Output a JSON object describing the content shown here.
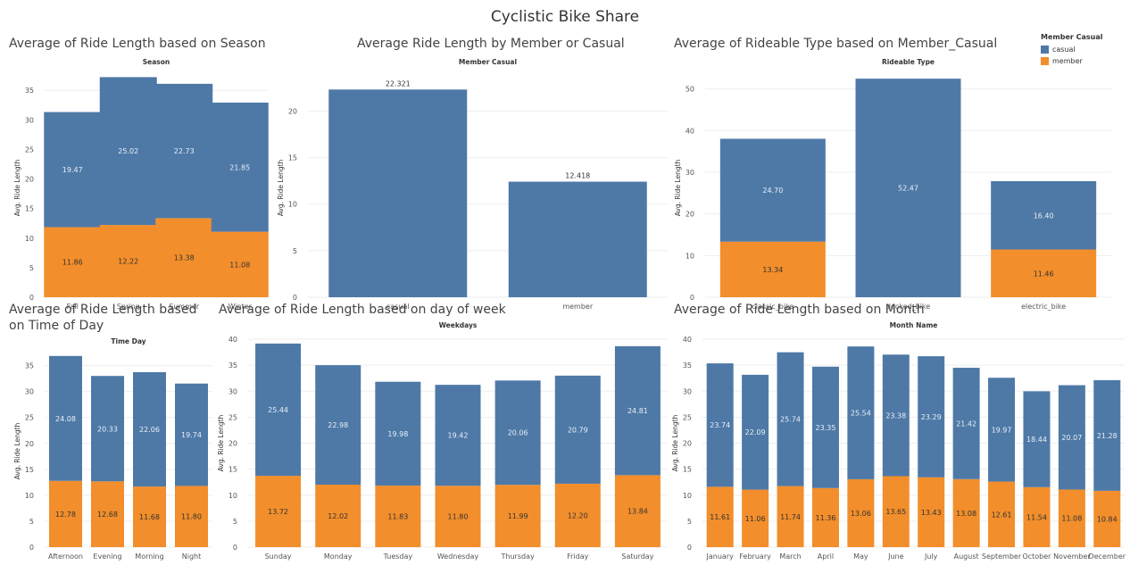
{
  "dashboard": {
    "title": "Cyclistic Bike Share"
  },
  "colors": {
    "casual": "#4e79a7",
    "member": "#f28e2b",
    "grid": "#eeeeee",
    "axis": "#555555"
  },
  "legend": {
    "title": "Member Casual",
    "items": [
      {
        "label": "casual",
        "color": "#4e79a7"
      },
      {
        "label": "member",
        "color": "#f28e2b"
      }
    ]
  },
  "chart_data": [
    {
      "id": "season",
      "type": "bar",
      "stacked": true,
      "title": "Average of Ride Length based on Season",
      "header": "Season",
      "ylabel": "Avg. Ride Length",
      "ylim": [
        0,
        37
      ],
      "yticks": [
        0,
        5,
        10,
        15,
        20,
        25,
        30,
        35
      ],
      "categories": [
        "Fall",
        "Spring",
        "Summer",
        "Winter"
      ],
      "series": [
        {
          "name": "member",
          "values": [
            11.86,
            12.22,
            13.38,
            11.08
          ]
        },
        {
          "name": "casual",
          "values": [
            19.47,
            25.02,
            22.73,
            21.85
          ]
        }
      ],
      "labels": {
        "member": [
          "11.86",
          "12.22",
          "13.38",
          "11.08"
        ],
        "casual": [
          "19.47",
          "25.02",
          "22.73",
          "21.85"
        ]
      }
    },
    {
      "id": "member_casual",
      "type": "bar",
      "stacked": false,
      "title": "Average Ride Length by Member or Casual",
      "header": "Member Casual",
      "ylabel": "Avg. Ride Length",
      "ylim": [
        0,
        23.5
      ],
      "yticks": [
        0,
        5,
        10,
        15,
        20
      ],
      "categories": [
        "casual",
        "member"
      ],
      "series": [
        {
          "name": "Avg. Ride Length",
          "values": [
            22.321,
            12.418
          ]
        }
      ],
      "labels": {
        "total": [
          "22.321",
          "12.418"
        ]
      }
    },
    {
      "id": "rideable_type",
      "type": "bar",
      "stacked": true,
      "title": "Average of Rideable Type based on Member_Casual",
      "header": "Rideable Type",
      "ylabel": "Avg. Ride Length",
      "ylim": [
        0,
        52.5
      ],
      "yticks": [
        0,
        10,
        20,
        30,
        40,
        50
      ],
      "categories": [
        "classic_bike",
        "docked_bike",
        "electric_bike"
      ],
      "series": [
        {
          "name": "member",
          "values": [
            13.34,
            0,
            11.46
          ]
        },
        {
          "name": "casual",
          "values": [
            24.7,
            52.47,
            16.4
          ]
        }
      ],
      "labels": {
        "member": [
          "13.34",
          "",
          "11.46"
        ],
        "casual": [
          "24.70",
          "52.47",
          "16.40"
        ]
      }
    },
    {
      "id": "time_of_day",
      "type": "bar",
      "stacked": true,
      "title": "Average of Ride Length based on Time of Day",
      "header": "Time Day",
      "ylabel": "Avg. Ride Length",
      "ylim": [
        0,
        37
      ],
      "yticks": [
        0,
        5,
        10,
        15,
        20,
        25,
        30,
        35
      ],
      "categories": [
        "Afternoon",
        "Evening",
        "Morning",
        "Night"
      ],
      "series": [
        {
          "name": "member",
          "values": [
            12.78,
            12.68,
            11.68,
            11.8
          ]
        },
        {
          "name": "casual",
          "values": [
            24.08,
            20.33,
            22.06,
            19.74
          ]
        }
      ],
      "labels": {
        "member": [
          "12.78",
          "12.68",
          "11.68",
          "11.80"
        ],
        "casual": [
          "24.08",
          "20.33",
          "22.06",
          "19.74"
        ]
      }
    },
    {
      "id": "weekday",
      "type": "bar",
      "stacked": true,
      "title": "Average of Ride Length based on day of week",
      "header": "Weekdays",
      "ylabel": "Avg. Ride Length",
      "ylim": [
        0,
        40
      ],
      "yticks": [
        0,
        5,
        10,
        15,
        20,
        25,
        30,
        35,
        40
      ],
      "categories": [
        "Sunday",
        "Monday",
        "Tuesday",
        "Wednesday",
        "Thursday",
        "Friday",
        "Saturday"
      ],
      "series": [
        {
          "name": "member",
          "values": [
            13.72,
            12.02,
            11.83,
            11.8,
            11.99,
            12.2,
            13.84
          ]
        },
        {
          "name": "casual",
          "values": [
            25.44,
            22.98,
            19.98,
            19.42,
            20.06,
            20.79,
            24.81
          ]
        }
      ],
      "labels": {
        "member": [
          "13.72",
          "12.02",
          "11.83",
          "11.80",
          "11.99",
          "12.20",
          "13.84"
        ],
        "casual": [
          "25.44",
          "22.98",
          "19.98",
          "19.42",
          "20.06",
          "20.79",
          "24.81"
        ]
      }
    },
    {
      "id": "month",
      "type": "bar",
      "stacked": true,
      "title": "Average of Ride Length based on Month",
      "header": "Month Name",
      "ylabel": "Avg. Ride Length",
      "ylim": [
        0,
        40
      ],
      "yticks": [
        0,
        5,
        10,
        15,
        20,
        25,
        30,
        35,
        40
      ],
      "categories": [
        "January",
        "February",
        "March",
        "April",
        "May",
        "June",
        "July",
        "August",
        "September",
        "October",
        "November",
        "December"
      ],
      "series": [
        {
          "name": "member",
          "values": [
            11.61,
            11.06,
            11.74,
            11.36,
            13.06,
            13.65,
            13.43,
            13.08,
            12.61,
            11.54,
            11.08,
            10.84
          ]
        },
        {
          "name": "casual",
          "values": [
            23.74,
            22.09,
            25.74,
            23.35,
            25.54,
            23.38,
            23.29,
            21.42,
            19.97,
            18.44,
            20.07,
            21.28
          ]
        }
      ],
      "labels": {
        "member": [
          "11.61",
          "11.06",
          "11.74",
          "11.36",
          "13.06",
          "13.65",
          "13.43",
          "13.08",
          "12.61",
          "11.54",
          "11.08",
          "10.84"
        ],
        "casual": [
          "23.74",
          "22.09",
          "25.74",
          "23.35",
          "25.54",
          "23.38",
          "23.29",
          "21.42",
          "19.97",
          "18.44",
          "20.07",
          "21.28"
        ]
      }
    }
  ]
}
